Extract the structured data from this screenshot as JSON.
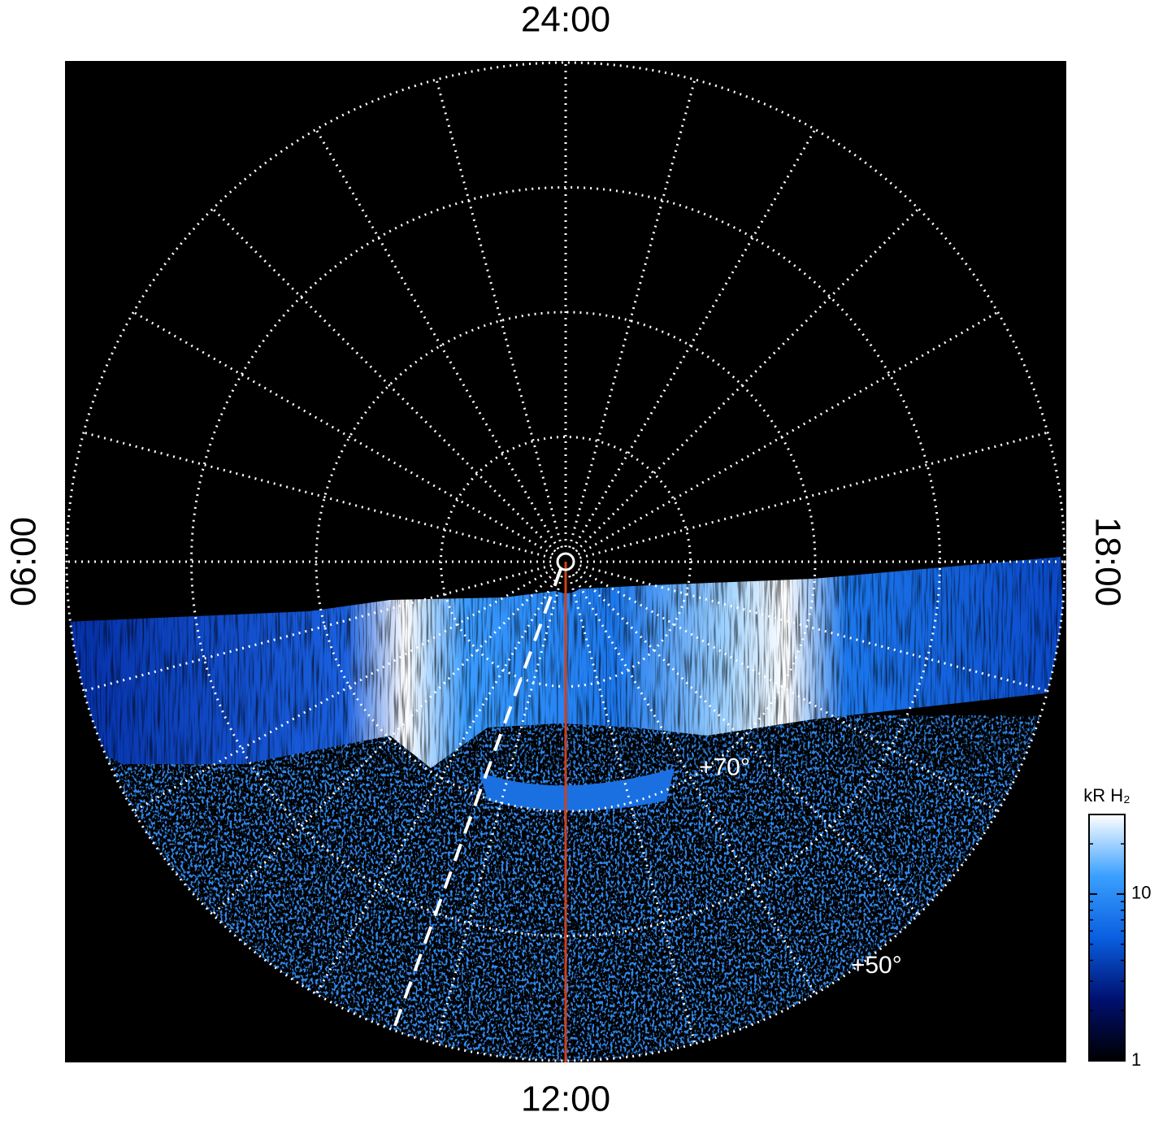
{
  "chart_data": {
    "type": "polar",
    "local_time_ticks": [
      {
        "value": 0,
        "label": "24:00"
      },
      {
        "value": 6,
        "label": "06:00"
      },
      {
        "value": 12,
        "label": "12:00"
      },
      {
        "value": 18,
        "label": "18:00"
      }
    ],
    "latlim": [
      90,
      50
    ],
    "latitude_ticks": [
      {
        "value": 80,
        "label": null
      },
      {
        "value": 70,
        "label": "+70°"
      },
      {
        "value": 60,
        "label": null
      },
      {
        "value": 50,
        "label": "+50°"
      }
    ],
    "grid": true,
    "colorbar": {
      "title": "kR H₂",
      "scale": "log",
      "lim": [
        1,
        30
      ],
      "ticks": [
        1,
        10
      ],
      "colors": [
        "#000000",
        "#001070",
        "#0a5fe0",
        "#3aa0ff",
        "#ffffff"
      ]
    }
  }
}
